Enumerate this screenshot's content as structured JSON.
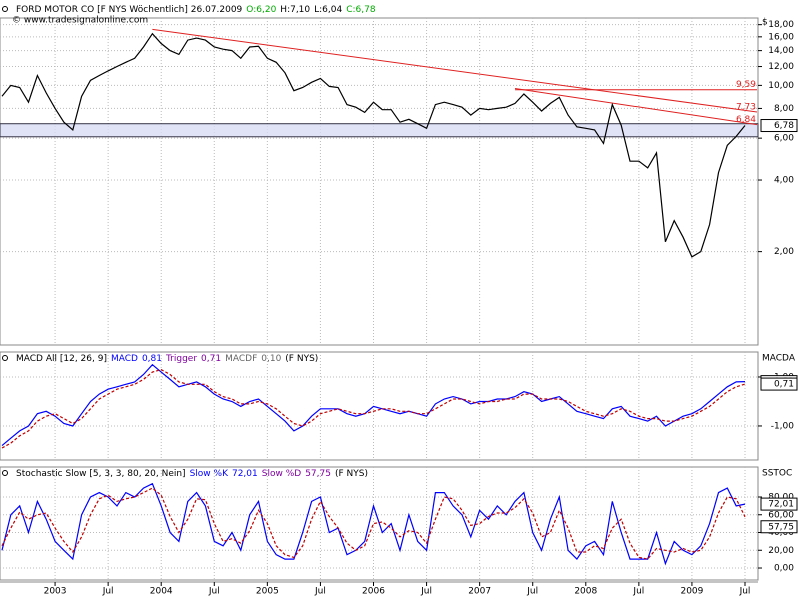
{
  "chart_data": [
    {
      "type": "line",
      "scale": "log",
      "title": [
        "FORD MOTOR CO [F NYS  Wöchentlich] 26.07.2009",
        "O:6,20",
        "H:7,10",
        "L:6,04",
        "C:6,78"
      ],
      "subtitle": "© www.tradesignalonline.com",
      "axis_label": "$",
      "categories": [
        null,
        null,
        null,
        null,
        null,
        null,
        "2003",
        null,
        null,
        null,
        null,
        null,
        "Jul",
        null,
        null,
        null,
        null,
        null,
        "2004",
        null,
        null,
        null,
        null,
        null,
        "Jul",
        null,
        null,
        null,
        null,
        null,
        "2005",
        null,
        null,
        null,
        null,
        null,
        "Jul",
        null,
        null,
        null,
        null,
        null,
        "2006",
        null,
        null,
        null,
        null,
        null,
        "Jul",
        null,
        null,
        null,
        null,
        null,
        "2007",
        null,
        null,
        null,
        null,
        null,
        "Jul",
        null,
        null,
        null,
        null,
        null,
        "2008",
        null,
        null,
        null,
        null,
        null,
        "Jul",
        null,
        null,
        null,
        null,
        null,
        "2009",
        null,
        null,
        null,
        null,
        null,
        "Jul"
      ],
      "series": [
        {
          "name": "F NYS",
          "color": "#000000",
          "last_label": "6,78",
          "values": [
            9,
            10,
            9.8,
            8.5,
            11,
            9.3,
            8,
            7,
            6.5,
            9,
            10.5,
            11,
            11.5,
            12,
            12.5,
            13,
            14.5,
            16.5,
            15,
            14,
            13.5,
            15.5,
            15.8,
            15.5,
            14.5,
            14.2,
            14,
            13,
            14.5,
            14.6,
            13,
            12.5,
            11.3,
            9.5,
            9.8,
            10.3,
            10.7,
            9.9,
            9.8,
            8.3,
            8.1,
            7.7,
            8.5,
            7.9,
            7.9,
            7.0,
            7.2,
            6.9,
            6.6,
            8.3,
            8.5,
            8.3,
            8.1,
            7.5,
            8.0,
            7.9,
            8.0,
            8.1,
            8.4,
            9.2,
            8.5,
            7.8,
            8.4,
            8.9,
            7.5,
            6.7,
            6.6,
            6.5,
            5.7,
            8.3,
            6.8,
            4.8,
            4.8,
            4.5,
            5.2,
            2.2,
            2.7,
            2.3,
            1.9,
            2.0,
            2.6,
            4.3,
            5.6,
            6.1,
            6.78
          ]
        }
      ],
      "zone": [
        6.08,
        6.9
      ],
      "trendlines": [
        {
          "x": [
            17,
            84
          ],
          "y": [
            17.2,
            7.73
          ],
          "label": "7,73"
        },
        {
          "x": [
            58,
            84
          ],
          "y": [
            9.7,
            6.84
          ],
          "label": "6,84"
        },
        {
          "x": [
            58,
            84
          ],
          "y": [
            9.59,
            9.59
          ],
          "label": "9,59"
        }
      ],
      "ylim": [
        0.81,
        19.2
      ],
      "yticks": [
        {
          "value": 2,
          "label": "2,00"
        },
        {
          "value": 4,
          "label": "4,00"
        },
        {
          "value": 6,
          "label": "6,00"
        },
        {
          "value": 8,
          "label": "8,00"
        },
        {
          "value": 10,
          "label": "10,00"
        },
        {
          "value": 12,
          "label": "12,00"
        },
        {
          "value": 14,
          "label": "14,00"
        },
        {
          "value": 16,
          "label": "16,00"
        },
        {
          "value": 18,
          "label": "18,00"
        }
      ],
      "grid": true
    },
    {
      "type": "line",
      "scale": "linear",
      "title": [
        "MACD All [12, 26, 9]",
        "(F NYS)"
      ],
      "extra": {
        "name": "MACDF",
        "label": "0,10"
      },
      "axis_label": "MACDA",
      "series": [
        {
          "name": "MACD",
          "color": "#0000ff",
          "last_label": "0,81",
          "values": [
            -1.8,
            -1.5,
            -1.2,
            -1.0,
            -0.5,
            -0.4,
            -0.6,
            -0.9,
            -1.0,
            -0.5,
            0.0,
            0.3,
            0.5,
            0.6,
            0.7,
            0.8,
            1.1,
            1.5,
            1.2,
            0.9,
            0.6,
            0.7,
            0.8,
            0.6,
            0.3,
            0.1,
            0.0,
            -0.2,
            0.0,
            0.1,
            -0.2,
            -0.5,
            -0.8,
            -1.2,
            -1.0,
            -0.6,
            -0.3,
            -0.3,
            -0.3,
            -0.5,
            -0.6,
            -0.5,
            -0.2,
            -0.3,
            -0.4,
            -0.5,
            -0.4,
            -0.5,
            -0.6,
            -0.1,
            0.1,
            0.2,
            0.1,
            -0.1,
            0.0,
            0.0,
            0.1,
            0.1,
            0.2,
            0.4,
            0.3,
            0.0,
            0.1,
            0.2,
            -0.1,
            -0.4,
            -0.5,
            -0.6,
            -0.7,
            -0.3,
            -0.2,
            -0.6,
            -0.7,
            -0.8,
            -0.6,
            -1.0,
            -0.8,
            -0.6,
            -0.5,
            -0.3,
            0.0,
            0.3,
            0.6,
            0.8,
            0.81
          ]
        },
        {
          "name": "Trigger",
          "color": "#c00000",
          "dashed": true,
          "last_label": "0,71",
          "values": [
            -1.9,
            -1.7,
            -1.4,
            -1.2,
            -0.8,
            -0.6,
            -0.5,
            -0.7,
            -0.9,
            -0.7,
            -0.3,
            0.1,
            0.3,
            0.5,
            0.6,
            0.7,
            0.9,
            1.2,
            1.3,
            1.1,
            0.8,
            0.7,
            0.7,
            0.7,
            0.4,
            0.2,
            0.1,
            -0.1,
            -0.1,
            0.0,
            -0.1,
            -0.3,
            -0.6,
            -0.9,
            -1.0,
            -0.8,
            -0.5,
            -0.4,
            -0.3,
            -0.4,
            -0.5,
            -0.5,
            -0.4,
            -0.3,
            -0.3,
            -0.4,
            -0.4,
            -0.5,
            -0.5,
            -0.3,
            -0.1,
            0.1,
            0.1,
            0.0,
            -0.1,
            0.0,
            0.0,
            0.1,
            0.1,
            0.3,
            0.3,
            0.1,
            0.1,
            0.1,
            0.0,
            -0.2,
            -0.4,
            -0.5,
            -0.6,
            -0.5,
            -0.3,
            -0.4,
            -0.6,
            -0.7,
            -0.7,
            -0.8,
            -0.8,
            -0.7,
            -0.6,
            -0.4,
            -0.2,
            0.1,
            0.4,
            0.6,
            0.71
          ]
        }
      ],
      "ylim": [
        -2.39,
        2.02
      ],
      "yticks": [
        {
          "value": -1,
          "label": "-1,00"
        },
        {
          "value": 1,
          "label": "1,00"
        }
      ],
      "grid": true
    },
    {
      "type": "line",
      "scale": "linear",
      "title": [
        "Stochastic Slow [5, 3, 3, 80, 20, Nein]",
        "(F NYS)"
      ],
      "axis_label": "SSTOC",
      "series": [
        {
          "name": "Slow %K",
          "color": "#0000ff",
          "last_label": "72,01",
          "values": [
            20,
            60,
            70,
            40,
            75,
            55,
            30,
            20,
            10,
            60,
            80,
            85,
            80,
            70,
            85,
            80,
            90,
            95,
            70,
            40,
            30,
            75,
            85,
            70,
            30,
            25,
            40,
            20,
            60,
            75,
            30,
            15,
            10,
            10,
            40,
            75,
            80,
            40,
            45,
            15,
            20,
            30,
            70,
            40,
            50,
            20,
            60,
            30,
            20,
            85,
            85,
            70,
            60,
            35,
            65,
            55,
            70,
            60,
            75,
            85,
            40,
            20,
            55,
            80,
            20,
            10,
            25,
            30,
            15,
            75,
            40,
            10,
            10,
            10,
            40,
            5,
            30,
            20,
            15,
            25,
            50,
            85,
            90,
            70,
            72.01
          ]
        },
        {
          "name": "Slow %D",
          "color": "#c00000",
          "dashed": true,
          "last_label": "57,75",
          "values": [
            25,
            45,
            63,
            55,
            60,
            62,
            45,
            30,
            18,
            35,
            60,
            78,
            82,
            75,
            78,
            80,
            85,
            90,
            82,
            58,
            40,
            55,
            78,
            77,
            50,
            30,
            33,
            28,
            42,
            65,
            50,
            25,
            15,
            12,
            25,
            55,
            75,
            58,
            45,
            28,
            20,
            25,
            50,
            52,
            45,
            35,
            42,
            40,
            28,
            55,
            80,
            78,
            65,
            48,
            50,
            58,
            62,
            62,
            68,
            78,
            62,
            35,
            40,
            65,
            45,
            18,
            18,
            25,
            22,
            45,
            55,
            28,
            12,
            10,
            22,
            20,
            18,
            22,
            18,
            20,
            35,
            62,
            80,
            78,
            57.75
          ]
        }
      ],
      "ylim": [
        -13.5,
        113.8
      ],
      "yticks": [
        {
          "value": 0,
          "label": "0,00"
        },
        {
          "value": 20,
          "label": "20,00"
        },
        {
          "value": 40,
          "label": "40,00"
        },
        {
          "value": 60,
          "label": "60,00"
        },
        {
          "value": 80,
          "label": "80,00"
        }
      ],
      "grid": true
    }
  ]
}
